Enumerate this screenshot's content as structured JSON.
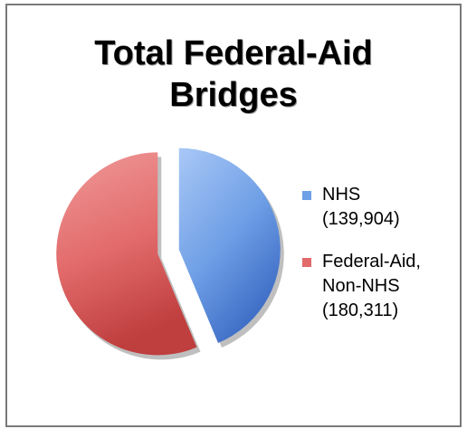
{
  "chart_data": {
    "type": "pie",
    "title": "Total Federal-Aid Bridges",
    "title_lines": [
      "Total Federal-Aid",
      "Bridges"
    ],
    "slices": [
      {
        "label": "NHS\n(139,904)",
        "value": 139904,
        "color": "#6f9fe6",
        "color_light": "#a9c8f6",
        "color_dark": "#3b6ac4"
      },
      {
        "label": "Federal-Aid,\nNon-NHS\n(180,311)",
        "value": 180311,
        "color": "#e26a6a",
        "color_light": "#f09a9a",
        "color_dark": "#bf3e3e"
      }
    ],
    "exploded": true,
    "legend_position": "right"
  }
}
